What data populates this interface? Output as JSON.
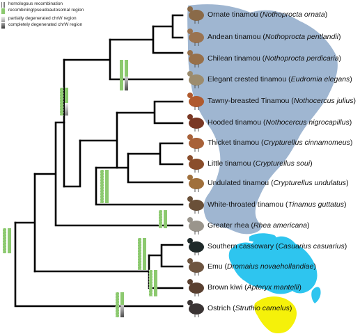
{
  "legend": [
    {
      "label": "homologous recombination",
      "type": "recomb-icon"
    },
    {
      "label": "recombining/pseudoautosomal region",
      "type": "green",
      "color": "#8cc96f"
    },
    {
      "label": "partially degenerated chrW region",
      "type": "gradient"
    },
    {
      "label": "completely degenerated chrW region",
      "type": "dark-gradient"
    }
  ],
  "colors": {
    "south_america": "#9fb6d1",
    "australia": "#2ec5ef",
    "africa": "#f5f10a",
    "tree": "#000000",
    "pseudoautosomal": "#8cc96f"
  },
  "taxa": [
    {
      "common": "Ornate tinamou",
      "scientific": "Nothoprocta ornata",
      "bird_color": "#8a6a48"
    },
    {
      "common": "Andean tinamou",
      "scientific": "Nothoprocta  pentlandii",
      "bird_color": "#9a7350"
    },
    {
      "common": "Chilean tinamou",
      "scientific": "Nothoprocta  perdicaria",
      "bird_color": "#97704a"
    },
    {
      "common": "Elegant crested tinamou",
      "scientific": "Eudromia elegans",
      "bird_color": "#9c8c6e"
    },
    {
      "common": "Tawny-breasted Tinamou",
      "scientific": "Nothocercus julius",
      "bird_color": "#b05a2e"
    },
    {
      "common": "Hooded tinamou",
      "scientific": "Nothocercus nigrocapillus",
      "bird_color": "#7a3824"
    },
    {
      "common": "Thicket tinamou",
      "scientific": "Crypturellus cinnamomeus",
      "bird_color": "#a8623a"
    },
    {
      "common": "Little tinamou",
      "scientific": "Crypturellus soui",
      "bird_color": "#8a4e2c"
    },
    {
      "common": "Undulated tinamou",
      "scientific": "Crypturellus undulatus",
      "bird_color": "#a0703c"
    },
    {
      "common": "White-throated tinamou",
      "scientific": "Tinamus guttatus",
      "bird_color": "#6a5038"
    },
    {
      "common": "Greater rhea",
      "scientific": "Rhea americana",
      "bird_color": "#9a958c"
    },
    {
      "common": "Southern cassowary",
      "scientific": "Casuarius casuarius",
      "bird_color": "#1f2a2a"
    },
    {
      "common": "Emu",
      "scientific": "Dromaius novaehollandiae",
      "bird_color": "#6e5540"
    },
    {
      "common": "Brown kiwi",
      "scientific": "Apteryx mantelli",
      "bird_color": "#5a4030"
    },
    {
      "common": "Ostrich",
      "scientific": "Struthio camelus",
      "bird_color": "#3a3434"
    }
  ]
}
